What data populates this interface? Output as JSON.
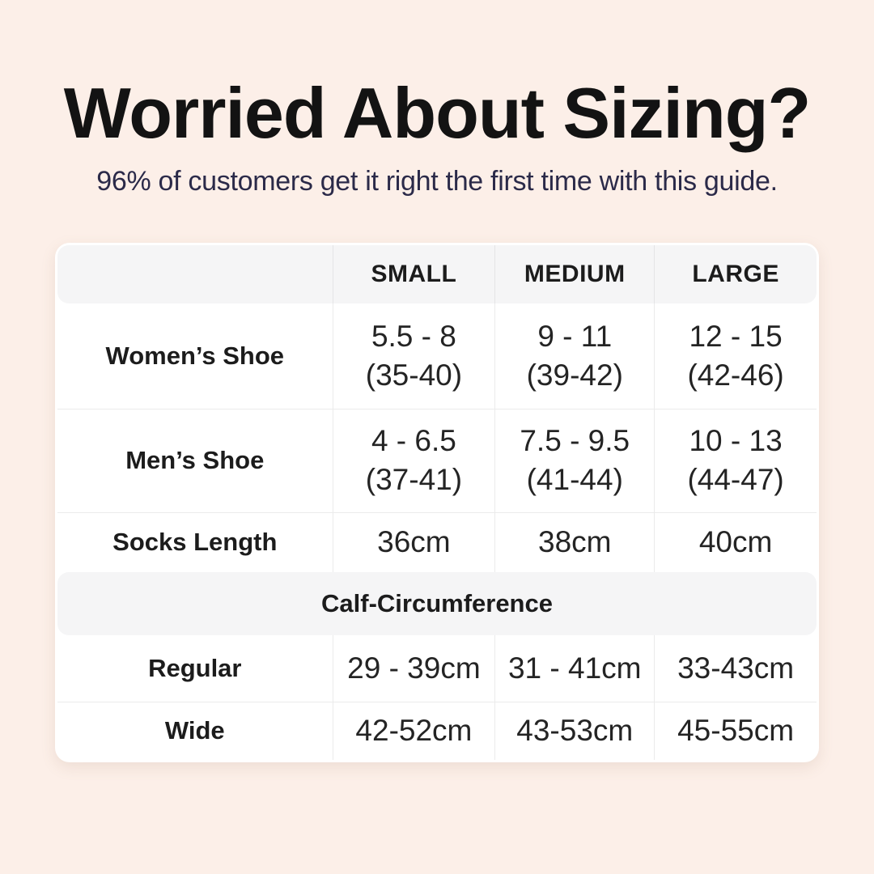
{
  "header": {
    "title": "Worried About Sizing?",
    "subtitle": "96% of customers get it right the first time with this guide."
  },
  "table": {
    "size_headers": [
      "SMALL",
      "MEDIUM",
      "LARGE"
    ],
    "rows": [
      {
        "label": "Women’s Shoe",
        "values": [
          [
            "5.5 - 8",
            "(35-40)"
          ],
          [
            "9 - 11",
            "(39-42)"
          ],
          [
            "12 - 15",
            "(42-46)"
          ]
        ]
      },
      {
        "label": "Men’s Shoe",
        "values": [
          [
            "4 - 6.5",
            "(37-41)"
          ],
          [
            "7.5 - 9.5",
            "(41-44)"
          ],
          [
            "10 - 13",
            "(44-47)"
          ]
        ]
      },
      {
        "label": "Socks Length",
        "values": [
          [
            "36cm"
          ],
          [
            "38cm"
          ],
          [
            "40cm"
          ]
        ]
      }
    ],
    "section_title": "Calf-Circumference",
    "calf_rows": [
      {
        "label": "Regular",
        "values": [
          "29 - 39cm",
          "31 - 41cm",
          "33-43cm"
        ]
      },
      {
        "label": "Wide",
        "values": [
          "42-52cm",
          "43-53cm",
          "45-55cm"
        ]
      }
    ]
  },
  "colors": {
    "background": "#fcefe8",
    "card": "#ffffff",
    "band": "#f5f5f6",
    "border": "#ebebeb",
    "title": "#131313",
    "subtitle": "#2b2a49",
    "label": "#1c1c1c",
    "value": "#242424"
  },
  "chart_data": {
    "type": "table",
    "title": "Worried About Sizing?",
    "subtitle": "96% of customers get it right the first time with this guide.",
    "columns": [
      "",
      "SMALL",
      "MEDIUM",
      "LARGE"
    ],
    "rows": [
      [
        "Women’s Shoe",
        "5.5 - 8 (35-40)",
        "9 - 11 (39-42)",
        "12 - 15 (42-46)"
      ],
      [
        "Men’s Shoe",
        "4 - 6.5 (37-41)",
        "7.5 - 9.5 (41-44)",
        "10 - 13 (44-47)"
      ],
      [
        "Socks Length",
        "36cm",
        "38cm",
        "40cm"
      ],
      [
        "Calf-Circumference",
        "",
        "",
        ""
      ],
      [
        "Regular",
        "29 - 39cm",
        "31 - 41cm",
        "33-43cm"
      ],
      [
        "Wide",
        "42-52cm",
        "43-53cm",
        "45-55cm"
      ]
    ],
    "layout": {
      "header_fill": "#f5f5f6",
      "body_fill": "#ffffff",
      "grid": true
    }
  }
}
